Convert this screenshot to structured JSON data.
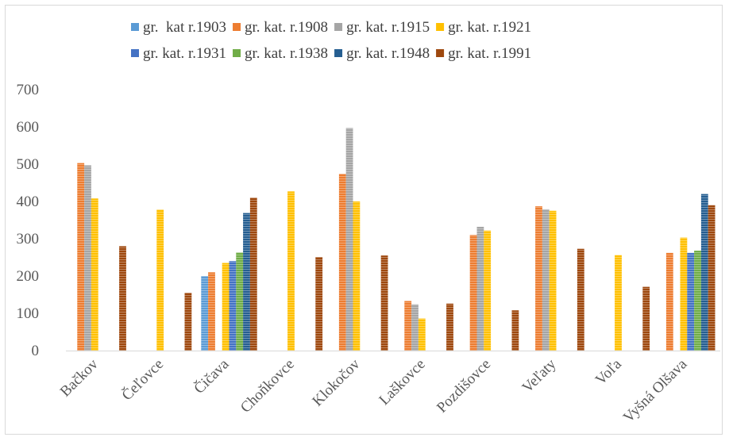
{
  "chart_data": {
    "type": "bar",
    "title": "",
    "xlabel": "",
    "ylabel": "",
    "ylim": [
      0,
      700
    ],
    "yticks": [
      0,
      100,
      200,
      300,
      400,
      500,
      600,
      700
    ],
    "grid": false,
    "legend_position": "top",
    "categories": [
      "Bačkov",
      "Čeľovce",
      "Čičava",
      "Choňkovce",
      "Klokočov",
      "Laškovce",
      "Pozdišovce",
      "Veľaty",
      "Voľa",
      "Vyšná Olšava"
    ],
    "series": [
      {
        "name": "gr.  kat r.1903",
        "color": "#5b9bd5",
        "values": [
          null,
          null,
          200,
          null,
          null,
          null,
          null,
          null,
          null,
          null
        ]
      },
      {
        "name": "gr. kat. r.1908",
        "color": "#ed7d31",
        "values": [
          503,
          null,
          210,
          null,
          474,
          133,
          310,
          387,
          null,
          262
        ]
      },
      {
        "name": "gr. kat. r.1915",
        "color": "#a5a5a5",
        "values": [
          497,
          null,
          null,
          null,
          597,
          124,
          332,
          379,
          null,
          null
        ]
      },
      {
        "name": "gr. kat. r.1921",
        "color": "#ffc000",
        "values": [
          408,
          378,
          235,
          427,
          400,
          86,
          322,
          375,
          256,
          303
        ]
      },
      {
        "name": "gr. kat. r.1931",
        "color": "#4472c4",
        "values": [
          null,
          null,
          240,
          null,
          null,
          null,
          null,
          null,
          null,
          262
        ]
      },
      {
        "name": "gr. kat. r.1938",
        "color": "#70ad47",
        "values": [
          null,
          null,
          263,
          null,
          null,
          null,
          null,
          null,
          null,
          268
        ]
      },
      {
        "name": "gr. kat. r.1948",
        "color": "#255e91",
        "values": [
          null,
          null,
          369,
          null,
          null,
          null,
          null,
          null,
          null,
          420
        ]
      },
      {
        "name": "gr. kat. r.1991",
        "color": "#9e480e",
        "values": [
          280,
          155,
          410,
          251,
          255,
          126,
          108,
          273,
          171,
          390
        ]
      }
    ]
  }
}
